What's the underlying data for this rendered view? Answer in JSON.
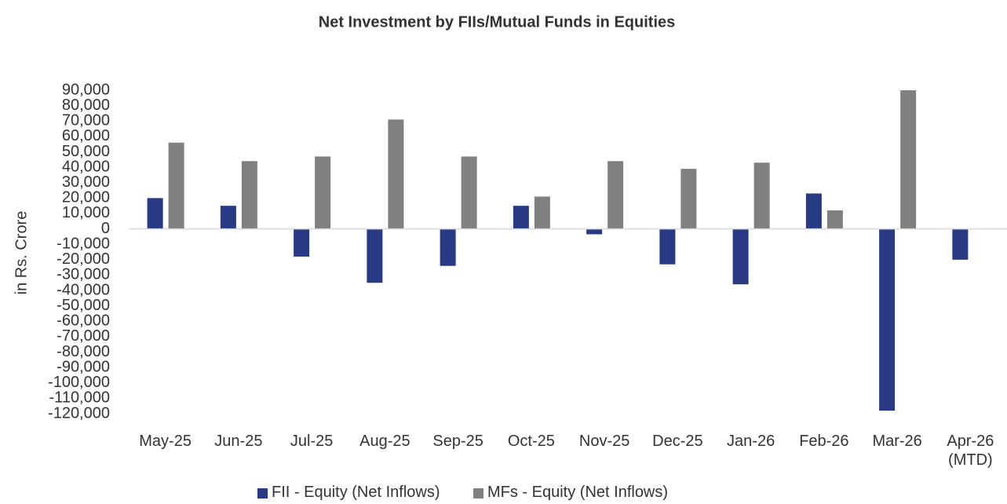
{
  "chart_data": {
    "type": "bar",
    "title": "Net Investment by FIIs/Mutual Funds in Equities",
    "y_label": "in Rs. Crore",
    "categories": [
      "May-25",
      "Jun-25",
      "Jul-25",
      "Aug-25",
      "Sep-25",
      "Oct-25",
      "Nov-25",
      "Dec-25",
      "Jan-26",
      "Feb-26",
      "Mar-26",
      "Apr-26 (MTD)"
    ],
    "series": [
      {
        "name": "FII - Equity (Net Inflows)",
        "color": "#283a84",
        "values": [
          20000,
          15000,
          -18000,
          -35000,
          -24000,
          15000,
          -3500,
          -23000,
          -36000,
          23000,
          -118000,
          -20000
        ]
      },
      {
        "name": "MFs - Equity (Net Inflows)",
        "color": "#808080",
        "values": [
          56000,
          44000,
          47000,
          71000,
          47000,
          21000,
          44000,
          39000,
          43000,
          12000,
          90000,
          null
        ]
      }
    ],
    "ylim": [
      -120000,
      90000
    ],
    "yticks": [
      {
        "value": 90000,
        "label": "90,000"
      },
      {
        "value": 80000,
        "label": "80,000"
      },
      {
        "value": 70000,
        "label": "70,000"
      },
      {
        "value": 60000,
        "label": "60,000"
      },
      {
        "value": 50000,
        "label": "50,000"
      },
      {
        "value": 40000,
        "label": "40,000"
      },
      {
        "value": 30000,
        "label": "30,000"
      },
      {
        "value": 20000,
        "label": "20,000"
      },
      {
        "value": 10000,
        "label": "10,000"
      },
      0,
      {
        "value": -10000,
        "label": "-10,000"
      },
      {
        "value": -20000,
        "label": "-20,000"
      },
      {
        "value": -30000,
        "label": "-30,000"
      },
      {
        "value": -40000,
        "label": "-40,000"
      },
      {
        "value": -50000,
        "label": "-50,000"
      },
      {
        "value": -60000,
        "label": "-60,000"
      },
      {
        "value": -70000,
        "label": "-70,000"
      },
      {
        "value": -80000,
        "label": "-80,000"
      },
      {
        "value": -90000,
        "label": "-90,000"
      },
      {
        "value": -100000,
        "label": "-100,000"
      },
      {
        "value": -110000,
        "label": "-110,000"
      },
      {
        "value": -120000,
        "label": "-120,000"
      }
    ],
    "grid": false,
    "legend": "bottom"
  }
}
